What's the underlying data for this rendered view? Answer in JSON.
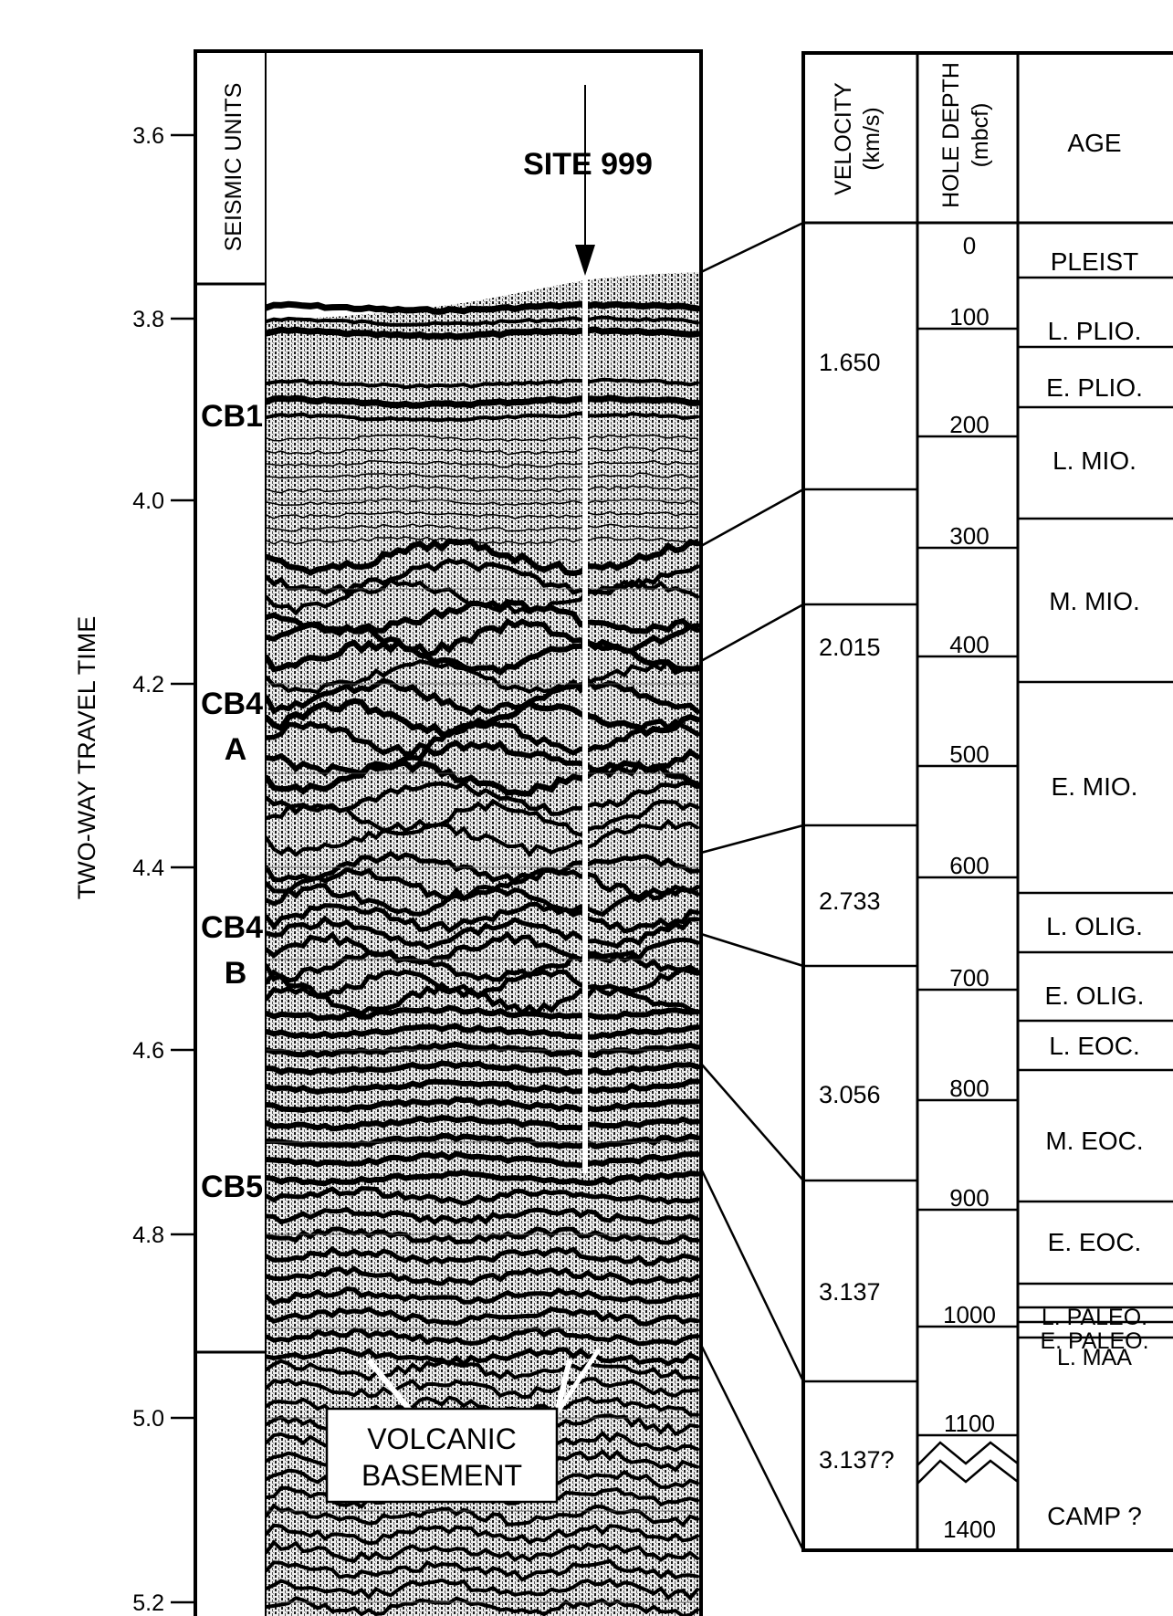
{
  "time_axis": {
    "label": "TWO-WAY TRAVEL TIME",
    "ticks": [
      "3.6",
      "3.8",
      "4.0",
      "4.2",
      "4.4",
      "4.6",
      "4.8",
      "5.0",
      "5.2"
    ]
  },
  "seismic_units": {
    "header": "SEISMIC UNITS",
    "units": [
      {
        "lines": [
          "CB1"
        ]
      },
      {
        "lines": [
          "CB4",
          "A"
        ]
      },
      {
        "lines": [
          "CB4",
          "B"
        ]
      },
      {
        "lines": [
          "CB5"
        ]
      }
    ]
  },
  "profile": {
    "site_label": "SITE 999",
    "basement_label": [
      "VOLCANIC",
      "BASEMENT"
    ]
  },
  "velocity": {
    "header": [
      "VELOCITY",
      "(km/s)"
    ],
    "values": [
      "1.650",
      "2.015",
      "2.733",
      "3.056",
      "3.137",
      "3.137?"
    ]
  },
  "hole_depth": {
    "header": [
      "HOLE DEPTH",
      "(mbcf)"
    ],
    "labels": [
      "0",
      "100",
      "200",
      "300",
      "400",
      "500",
      "600",
      "700",
      "800",
      "900",
      "1000",
      "1100",
      "1400"
    ]
  },
  "age": {
    "header": "AGE",
    "labels": [
      "PLEIST",
      "L. PLIO.",
      "E. PLIO.",
      "L. MIO.",
      "M. MIO.",
      "E. MIO.",
      "L. OLIG.",
      "E. OLIG.",
      "L. EOC.",
      "M. EOC.",
      "E. EOC.",
      "L. PALEO.",
      "E. PALEO.",
      "L. MAA",
      "CAMP ?"
    ]
  }
}
